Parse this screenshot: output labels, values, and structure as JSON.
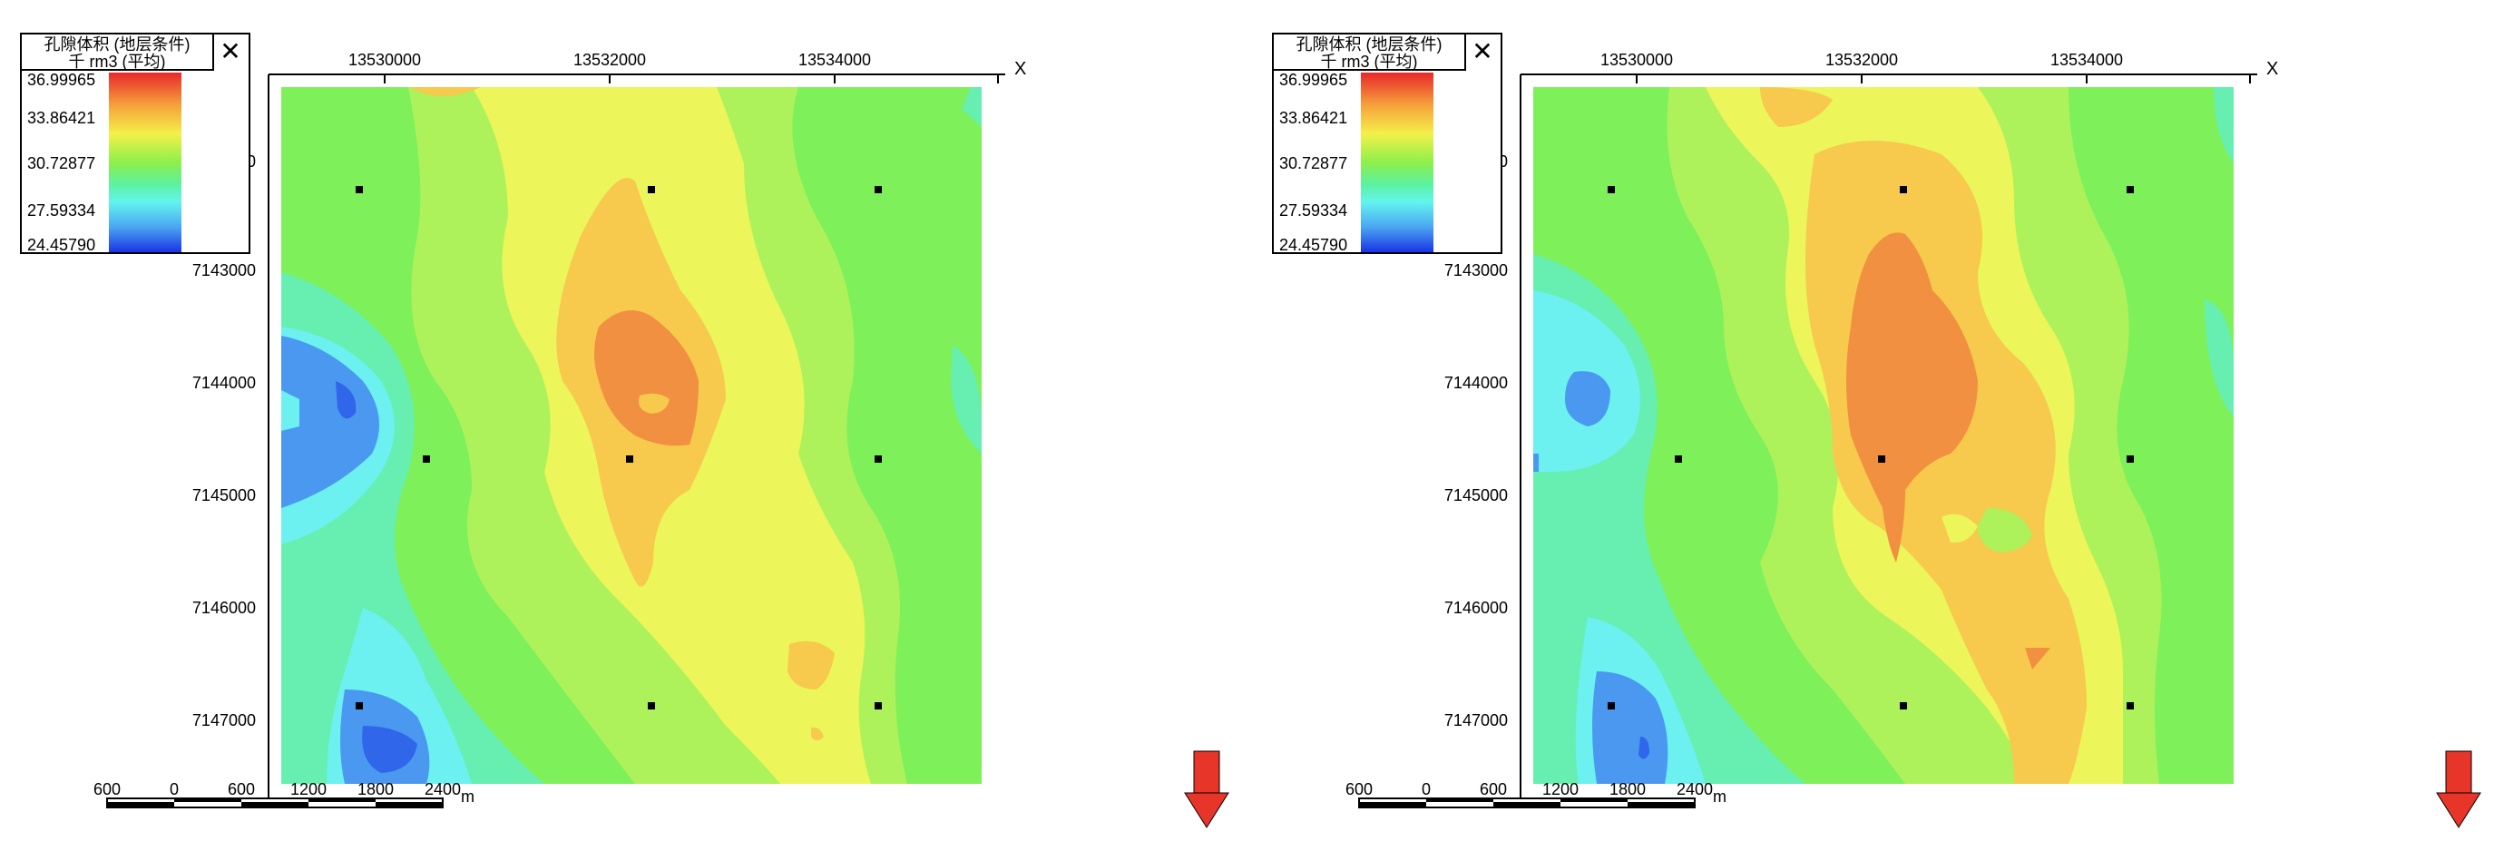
{
  "legend": {
    "title_line1": "孔隙体积 (地层条件)",
    "title_line2": "千 rm3 (平均)",
    "close_symbol": "✕",
    "values": [
      "36.99965",
      "33.86421",
      "30.72877",
      "27.59334",
      "24.45790"
    ]
  },
  "axes": {
    "x_label": "X",
    "x_ticks": [
      "13530000",
      "13532000",
      "13534000"
    ],
    "y_ticks": [
      "7143000",
      "7144000",
      "7145000",
      "7146000",
      "7147000"
    ],
    "y_clipped_tick": "0"
  },
  "scale_bar": {
    "labels": [
      "600",
      "0",
      "600",
      "1200",
      "1800",
      "2400"
    ],
    "unit": "m"
  },
  "colors": {
    "dark_blue": "#2f66ea",
    "blue": "#4a98f0",
    "cyan": "#6cf0f0",
    "aqua": "#66efb0",
    "green": "#7ef05a",
    "light_green": "#adf25a",
    "yellow": "#ecf55a",
    "light_orange": "#f7c94c",
    "orange": "#f09040",
    "arrow": "#e8352a"
  }
}
